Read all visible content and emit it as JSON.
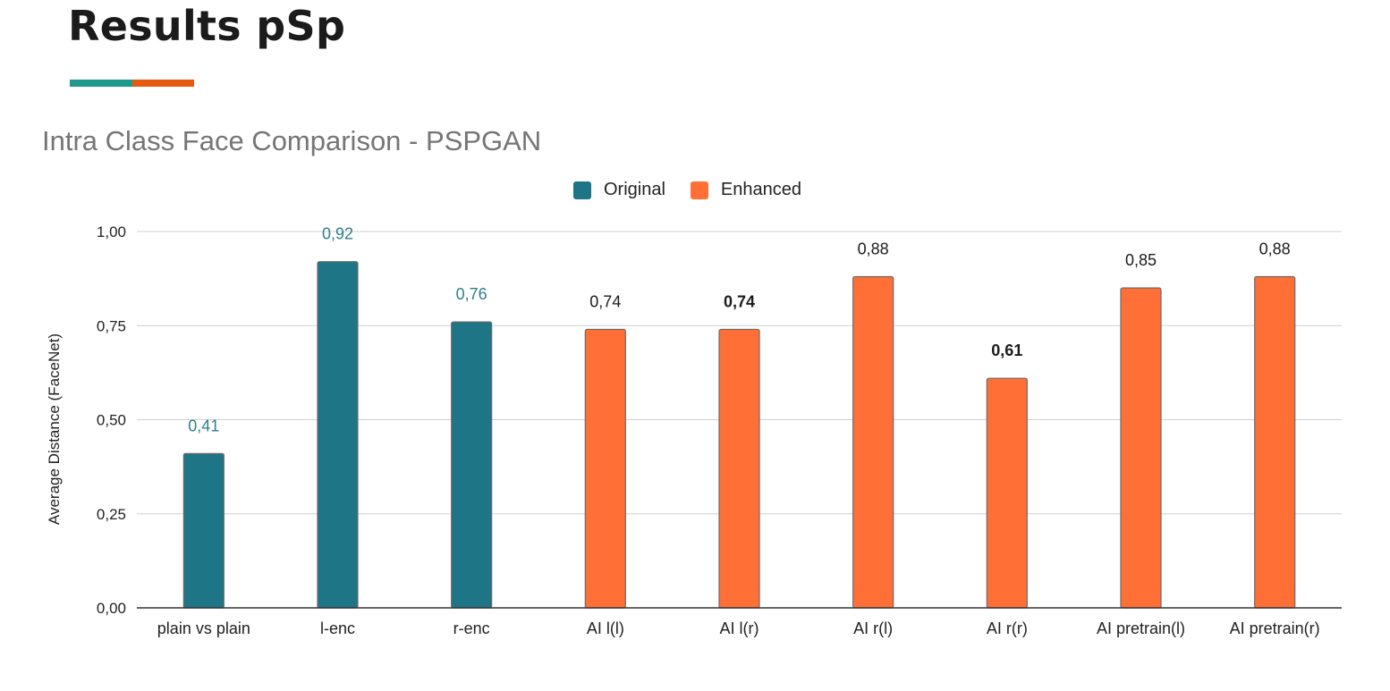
{
  "slide": {
    "title": "Results pSp",
    "accent_colors": [
      "#1e9a8c",
      "#e55a0f"
    ]
  },
  "chart_data": {
    "type": "bar",
    "title": "Intra Class Face Comparison - PSPGAN",
    "xlabel": "",
    "ylabel": "Average Distance (FaceNet)",
    "ylim": [
      0,
      1
    ],
    "yticks": [
      "0,00",
      "0,25",
      "0,50",
      "0,75",
      "1,00"
    ],
    "ytick_values": [
      0,
      0.25,
      0.5,
      0.75,
      1.0
    ],
    "grid": true,
    "legend_position": "top",
    "categories": [
      "plain vs plain",
      "l-enc",
      "r-enc",
      "AI l(l)",
      "AI l(r)",
      "AI r(l)",
      "AI r(r)",
      "AI pretrain(l)",
      "AI pretrain(r)"
    ],
    "series": [
      {
        "name": "Original",
        "color": "#1e7585",
        "values": [
          0.41,
          0.92,
          0.76,
          null,
          null,
          null,
          null,
          null,
          null
        ],
        "labels": [
          "0,41",
          "0,92",
          "0,76",
          null,
          null,
          null,
          null,
          null,
          null
        ],
        "label_color": "#2f7f8c"
      },
      {
        "name": "Enhanced",
        "color": "#ff6f36",
        "values": [
          null,
          null,
          null,
          0.74,
          0.74,
          0.88,
          0.61,
          0.85,
          0.88
        ],
        "labels": [
          null,
          null,
          null,
          "0,74",
          "0,74",
          "0,88",
          "0,61",
          "0,85",
          "0,88"
        ],
        "bold_labels": [
          false,
          false,
          false,
          false,
          true,
          false,
          true,
          false,
          false
        ],
        "label_color": "#1b1b1b"
      }
    ]
  }
}
